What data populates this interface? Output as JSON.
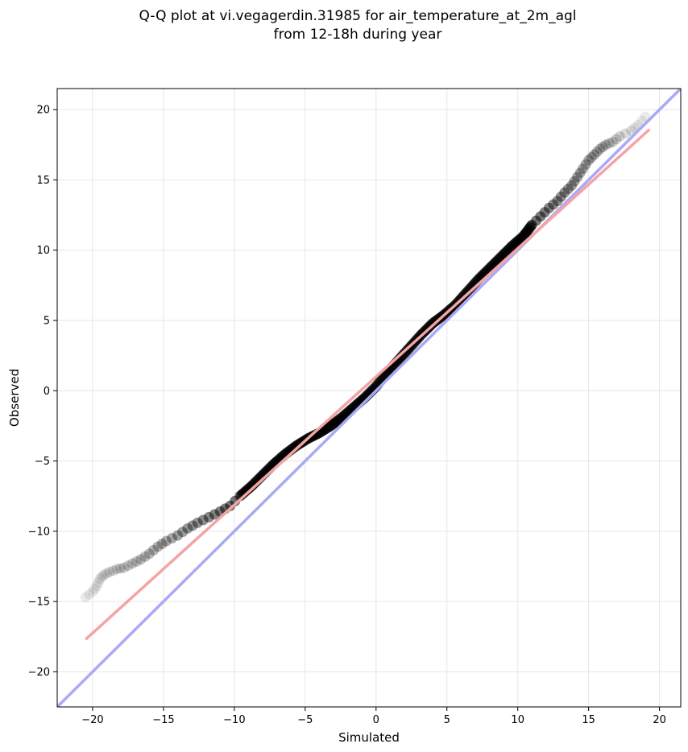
{
  "chart_data": {
    "type": "scatter",
    "title": [
      "Q-Q plot at vi.vegagerdin.31985 for air_temperature_at_2m_agl",
      "from 12-18h during year"
    ],
    "xlabel": "Simulated",
    "ylabel": "Observed",
    "xlim": [
      -22.5,
      21.5
    ],
    "ylim": [
      -22.5,
      21.5
    ],
    "xticks": [
      -20,
      -15,
      -10,
      -5,
      0,
      5,
      10,
      15,
      20
    ],
    "yticks": [
      -20,
      -15,
      -10,
      -5,
      0,
      5,
      10,
      15,
      20
    ],
    "tick_labels": [
      "−20",
      "−15",
      "−10",
      "−5",
      "0",
      "5",
      "10",
      "15",
      "20"
    ],
    "grid": true,
    "quantile_points": {
      "x": [
        -20.5,
        -20,
        -19.7,
        -19.5,
        -19.2,
        -18.8,
        -18.3,
        -17.8,
        -17.2,
        -16.6,
        -16.0,
        -15.4,
        -14.8,
        -14.0,
        -13.3,
        -12.6,
        -11.8,
        -11.0,
        -10.3,
        -9.6,
        -8.8,
        -8.0,
        -7.2,
        -6.4,
        -5.6,
        -4.8,
        -4.0,
        -3.2,
        -2.4,
        -1.6,
        -0.8,
        0.0,
        0.8,
        1.6,
        2.4,
        3.2,
        4.0,
        4.8,
        5.6,
        6.4,
        7.2,
        8.0,
        8.8,
        9.6,
        10.4,
        11.0,
        11.6,
        12.2,
        12.8,
        13.3,
        13.8,
        14.2,
        14.6,
        15.0,
        15.4,
        15.8,
        16.2,
        16.7,
        17.2,
        18.0,
        18.5,
        19.0
      ],
      "y": [
        -14.7,
        -14.3,
        -13.9,
        -13.4,
        -13.1,
        -12.9,
        -12.7,
        -12.6,
        -12.3,
        -12.0,
        -11.6,
        -11.1,
        -10.7,
        -10.3,
        -9.8,
        -9.4,
        -9.0,
        -8.6,
        -8.2,
        -7.5,
        -6.8,
        -6.0,
        -5.2,
        -4.5,
        -3.9,
        -3.4,
        -3.0,
        -2.5,
        -1.9,
        -1.2,
        -0.5,
        0.3,
        1.3,
        2.2,
        3.1,
        4.0,
        4.8,
        5.4,
        6.1,
        7.0,
        7.9,
        8.7,
        9.5,
        10.3,
        11.0,
        11.8,
        12.4,
        13.0,
        13.5,
        14.1,
        14.6,
        15.2,
        15.8,
        16.4,
        16.8,
        17.2,
        17.5,
        17.7,
        18.1,
        18.5,
        18.9,
        19.5
      ]
    },
    "fit_line": {
      "x": [
        -20.5,
        19.3
      ],
      "y": [
        -17.7,
        18.6
      ],
      "color": "#f4a4a4"
    },
    "identity_line": {
      "x": [
        -22.5,
        21.5
      ],
      "y": [
        -22.5,
        21.5
      ],
      "color": "#a9a9f5"
    },
    "colors": {
      "points": "#000000",
      "fit": "#f4a4a4",
      "identity": "#a9a9f5",
      "grid": "#e6e6e6"
    }
  }
}
